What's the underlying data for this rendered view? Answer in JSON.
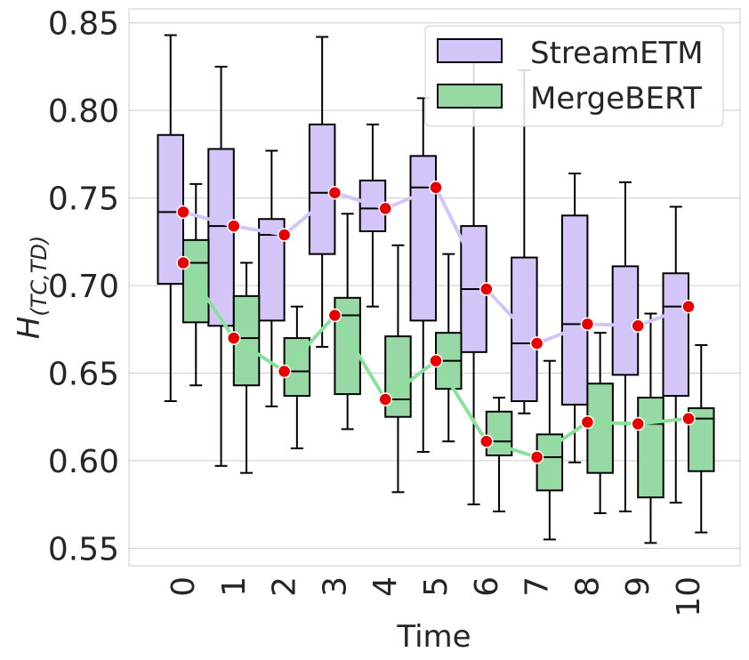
{
  "chart_data": {
    "type": "box",
    "xlabel": "Time",
    "ylabel_main": "H",
    "ylabel_subscript": "(TC,TD)",
    "ylim": [
      0.54,
      0.858
    ],
    "yticks": [
      0.55,
      0.6,
      0.65,
      0.7,
      0.75,
      0.8,
      0.85
    ],
    "ytick_labels": [
      "0.55",
      "0.60",
      "0.65",
      "0.70",
      "0.75",
      "0.80",
      "0.85"
    ],
    "categories": [
      "0",
      "1",
      "2",
      "3",
      "4",
      "5",
      "6",
      "7",
      "8",
      "9",
      "10"
    ],
    "grid": true,
    "legend_position": "top-right",
    "series": [
      {
        "name": "StreamETM",
        "box_color": "#D3C5F7",
        "line_color": "#D3C5F7",
        "boxes": [
          {
            "min": 0.634,
            "q1": 0.701,
            "median": 0.742,
            "q3": 0.786,
            "max": 0.843
          },
          {
            "min": 0.597,
            "q1": 0.677,
            "median": 0.734,
            "q3": 0.778,
            "max": 0.825
          },
          {
            "min": 0.631,
            "q1": 0.68,
            "median": 0.729,
            "q3": 0.738,
            "max": 0.777
          },
          {
            "min": 0.665,
            "q1": 0.718,
            "median": 0.753,
            "q3": 0.792,
            "max": 0.842
          },
          {
            "min": 0.688,
            "q1": 0.731,
            "median": 0.744,
            "q3": 0.76,
            "max": 0.792
          },
          {
            "min": 0.605,
            "q1": 0.68,
            "median": 0.756,
            "q3": 0.774,
            "max": 0.807
          },
          {
            "min": 0.575,
            "q1": 0.662,
            "median": 0.698,
            "q3": 0.734,
            "max": 0.84
          },
          {
            "min": 0.627,
            "q1": 0.634,
            "median": 0.667,
            "q3": 0.716,
            "max": 0.823
          },
          {
            "min": 0.599,
            "q1": 0.632,
            "median": 0.678,
            "q3": 0.74,
            "max": 0.764
          },
          {
            "min": 0.571,
            "q1": 0.649,
            "median": 0.677,
            "q3": 0.711,
            "max": 0.759
          },
          {
            "min": 0.576,
            "q1": 0.637,
            "median": 0.688,
            "q3": 0.707,
            "max": 0.745
          }
        ],
        "means": [
          0.742,
          0.734,
          0.729,
          0.753,
          0.744,
          0.756,
          0.698,
          0.667,
          0.678,
          0.677,
          0.688
        ]
      },
      {
        "name": "MergeBERT",
        "box_color": "#96D9A4",
        "line_color": "#8BE09A",
        "boxes": [
          {
            "min": 0.643,
            "q1": 0.679,
            "median": 0.713,
            "q3": 0.726,
            "max": 0.758
          },
          {
            "min": 0.593,
            "q1": 0.643,
            "median": 0.67,
            "q3": 0.694,
            "max": 0.713
          },
          {
            "min": 0.607,
            "q1": 0.637,
            "median": 0.651,
            "q3": 0.67,
            "max": 0.688
          },
          {
            "min": 0.618,
            "q1": 0.638,
            "median": 0.683,
            "q3": 0.693,
            "max": 0.741
          },
          {
            "min": 0.582,
            "q1": 0.625,
            "median": 0.635,
            "q3": 0.671,
            "max": 0.723
          },
          {
            "min": 0.611,
            "q1": 0.641,
            "median": 0.657,
            "q3": 0.673,
            "max": 0.718
          },
          {
            "min": 0.571,
            "q1": 0.603,
            "median": 0.611,
            "q3": 0.628,
            "max": 0.636
          },
          {
            "min": 0.555,
            "q1": 0.583,
            "median": 0.602,
            "q3": 0.615,
            "max": 0.657
          },
          {
            "min": 0.57,
            "q1": 0.593,
            "median": 0.622,
            "q3": 0.644,
            "max": 0.673
          },
          {
            "min": 0.553,
            "q1": 0.579,
            "median": 0.621,
            "q3": 0.636,
            "max": 0.684
          },
          {
            "min": 0.559,
            "q1": 0.594,
            "median": 0.624,
            "q3": 0.63,
            "max": 0.666
          }
        ],
        "means": [
          0.713,
          0.67,
          0.651,
          0.683,
          0.635,
          0.657,
          0.611,
          0.602,
          0.622,
          0.621,
          0.624
        ]
      }
    ],
    "mean_marker": {
      "fill": "#E60000",
      "stroke": "#ffffff"
    }
  }
}
